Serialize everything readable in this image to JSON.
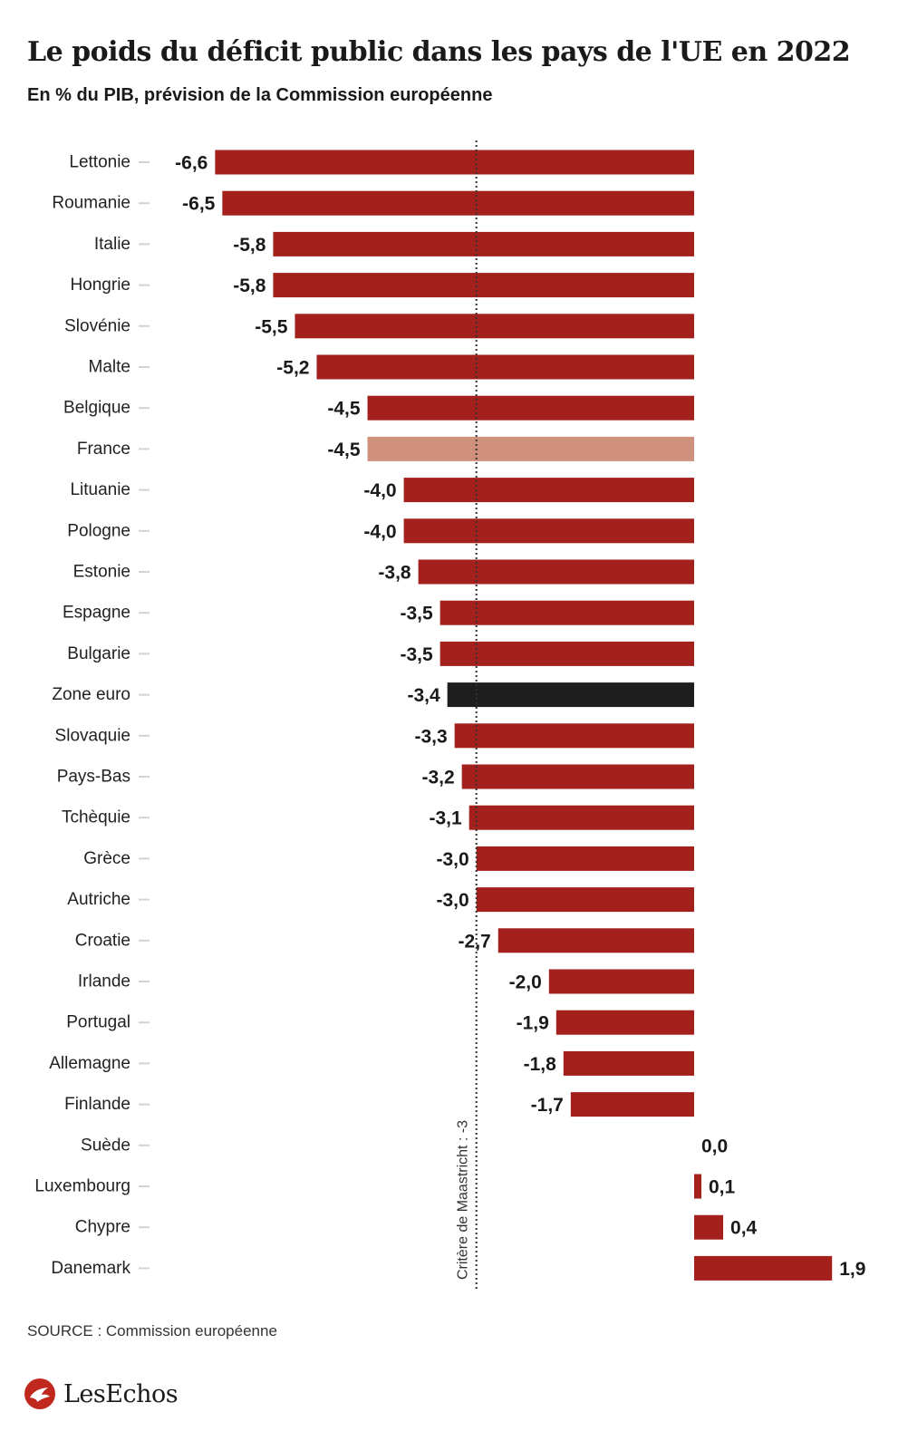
{
  "colors": {
    "default": "#a3201c",
    "highlight": "#d0917c",
    "average": "#1e1e1e",
    "tick": "#d3d3d3",
    "reference_line": "#333333",
    "brand": "#c0281e"
  },
  "header": {
    "title": "Le poids du déficit public dans les pays de l'UE en 2022",
    "subtitle": "En % du PIB, prévision de la Commission européenne"
  },
  "footer": {
    "source": "SOURCE : Commission européenne",
    "logo_text": "LesEchos",
    "logo_icon": "les-echos-logo-icon"
  },
  "chart_data": {
    "type": "bar",
    "orientation": "horizontal",
    "title": "",
    "xlabel": "",
    "ylabel": "",
    "xlim": [
      -7,
      2.5
    ],
    "grid": false,
    "legend": "none",
    "categories": [
      "Lettonie",
      "Roumanie",
      "Italie",
      "Hongrie",
      "Slovénie",
      "Malte",
      "Belgique",
      "France",
      "Lituanie",
      "Pologne",
      "Estonie",
      "Espagne",
      "Bulgarie",
      "Zone euro",
      "Slovaquie",
      "Pays-Bas",
      "Tchèquie",
      "Grèce",
      "Autriche",
      "Croatie",
      "Irlande",
      "Portugal",
      "Allemagne",
      "Finlande",
      "Suède",
      "Luxembourg",
      "Chypre",
      "Danemark"
    ],
    "values": [
      -6.6,
      -6.5,
      -5.8,
      -5.8,
      -5.5,
      -5.2,
      -4.5,
      -4.5,
      -4.0,
      -4.0,
      -3.8,
      -3.5,
      -3.5,
      -3.4,
      -3.3,
      -3.2,
      -3.1,
      -3.0,
      -3.0,
      -2.7,
      -2.0,
      -1.9,
      -1.8,
      -1.7,
      0.0,
      0.1,
      0.4,
      1.9
    ],
    "value_labels": [
      "-6,6",
      "-6,5",
      "-5,8",
      "-5,8",
      "-5,5",
      "-5,2",
      "-4,5",
      "-4,5",
      "-4,0",
      "-4,0",
      "-3,8",
      "-3,5",
      "-3,5",
      "-3,4",
      "-3,3",
      "-3,2",
      "-3,1",
      "-3,0",
      "-3,0",
      "-2,7",
      "-2,0",
      "-1,9",
      "-1,8",
      "-1,7",
      "0,0",
      "0,1",
      "0,4",
      "1,9"
    ],
    "highlight": {
      "France": "highlight",
      "Zone euro": "average"
    },
    "reference_line": {
      "value": -3,
      "label": "Critère de Maastricht : -3"
    }
  }
}
